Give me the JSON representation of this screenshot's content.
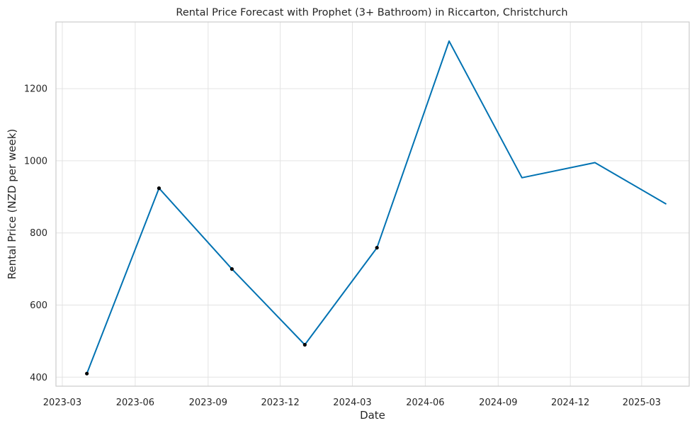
{
  "chart_data": {
    "type": "line",
    "title": "Rental Price Forecast with Prophet (3+ Bathroom) in Riccarton, Christchurch",
    "xlabel": "Date",
    "ylabel": "Rental Price (NZD per week)",
    "x_ticks": [
      "2023-03",
      "2023-06",
      "2023-09",
      "2023-12",
      "2024-03",
      "2024-06",
      "2024-09",
      "2024-12",
      "2025-03"
    ],
    "y_ticks": [
      400,
      600,
      800,
      1000,
      1200
    ],
    "xlim": [
      "2023-02-21",
      "2025-04-30"
    ],
    "ylim": [
      375,
      1385
    ],
    "grid": true,
    "forecast": {
      "color": "#0072B2",
      "points": [
        {
          "x": "2023-04-01",
          "y": 410
        },
        {
          "x": "2023-07-01",
          "y": 924
        },
        {
          "x": "2023-10-01",
          "y": 700
        },
        {
          "x": "2024-01-01",
          "y": 490
        },
        {
          "x": "2024-04-01",
          "y": 759
        },
        {
          "x": "2024-07-01",
          "y": 1332
        },
        {
          "x": "2024-10-01",
          "y": 953
        },
        {
          "x": "2025-01-01",
          "y": 995
        },
        {
          "x": "2025-04-01",
          "y": 880
        }
      ]
    },
    "observed": {
      "color": "#000000",
      "points": [
        {
          "x": "2023-04-01",
          "y": 410
        },
        {
          "x": "2023-07-01",
          "y": 924
        },
        {
          "x": "2023-10-01",
          "y": 700
        },
        {
          "x": "2024-01-01",
          "y": 490
        },
        {
          "x": "2024-04-01",
          "y": 759
        }
      ]
    }
  }
}
